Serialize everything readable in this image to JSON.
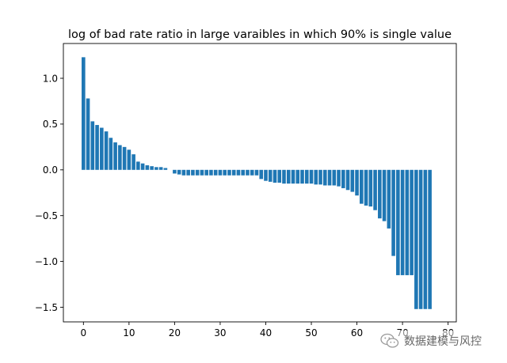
{
  "chart_data": {
    "type": "bar",
    "title": "log of bad rate ratio in large varaibles in which 90% is single value",
    "xlabel": "",
    "ylabel": "",
    "xlim": [
      -4.4,
      81.8
    ],
    "ylim": [
      -1.66,
      1.38
    ],
    "xticks": [
      0,
      10,
      20,
      30,
      40,
      50,
      60,
      70,
      80
    ],
    "yticks": [
      1.0,
      0.5,
      0.0,
      -0.5,
      -1.0,
      -1.5
    ],
    "ytick_labels": [
      "1.0",
      "0.5",
      "0.0",
      "−0.5",
      "−1.0",
      "−1.5"
    ],
    "grid": false,
    "bar_color": "#1f77b4",
    "values": [
      1.23,
      0.78,
      0.53,
      0.49,
      0.46,
      0.42,
      0.35,
      0.3,
      0.27,
      0.25,
      0.22,
      0.17,
      0.09,
      0.07,
      0.05,
      0.04,
      0.03,
      0.03,
      0.02,
      0.0,
      -0.04,
      -0.05,
      -0.06,
      -0.06,
      -0.06,
      -0.06,
      -0.06,
      -0.06,
      -0.06,
      -0.06,
      -0.06,
      -0.06,
      -0.06,
      -0.06,
      -0.06,
      -0.06,
      -0.06,
      -0.06,
      -0.06,
      -0.1,
      -0.12,
      -0.13,
      -0.14,
      -0.14,
      -0.15,
      -0.15,
      -0.15,
      -0.15,
      -0.15,
      -0.15,
      -0.15,
      -0.16,
      -0.16,
      -0.17,
      -0.17,
      -0.17,
      -0.18,
      -0.2,
      -0.22,
      -0.24,
      -0.28,
      -0.37,
      -0.39,
      -0.4,
      -0.44,
      -0.53,
      -0.56,
      -0.64,
      -0.94,
      -1.15,
      -1.15,
      -1.15,
      -1.15,
      -1.52,
      -1.52,
      -1.52,
      -1.52
    ]
  },
  "watermark": {
    "text": "数据建模与风控",
    "icon": "wechat-icon"
  }
}
